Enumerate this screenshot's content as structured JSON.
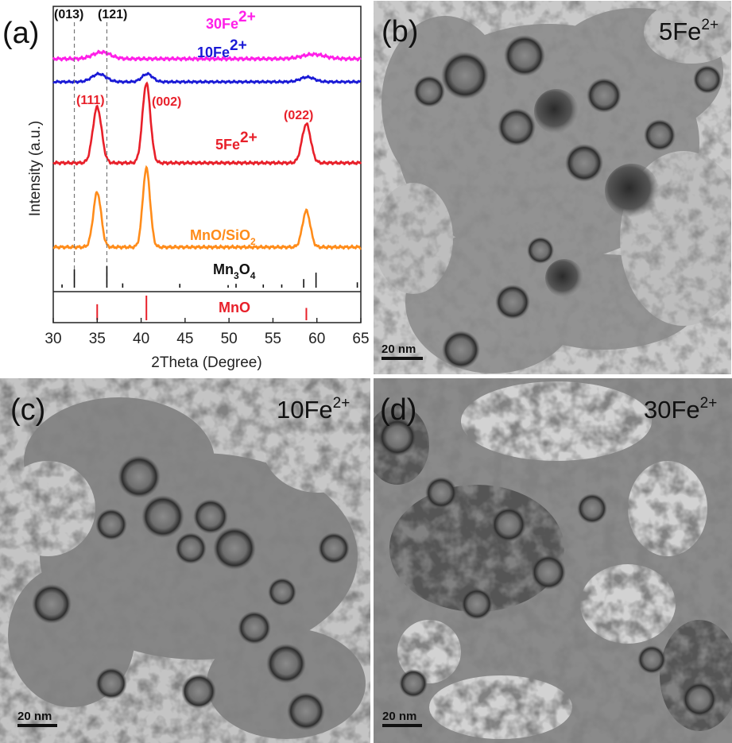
{
  "panels": {
    "a": {
      "label": "(a)"
    },
    "b": {
      "label": "(b)",
      "header": {
        "base": "5Fe",
        "sup": "2+"
      },
      "scale_bar": "20 nm"
    },
    "c": {
      "label": "(c)",
      "header": {
        "base": "10Fe",
        "sup": "2+"
      },
      "scale_bar": "20 nm"
    },
    "d": {
      "label": "(d)",
      "header": {
        "base": "30Fe",
        "sup": "2+"
      },
      "scale_bar": "20 nm"
    }
  },
  "chart_data": {
    "type": "line",
    "xlabel": "2Theta (Degree)",
    "ylabel": "Intensity (a.u.)",
    "xlim": [
      30,
      65
    ],
    "x_ticks": [
      30,
      35,
      40,
      45,
      50,
      55,
      60,
      65
    ],
    "colors": {
      "pink": "#ff1fe8",
      "blue": "#1a1ad6",
      "red": "#e8202a",
      "orange": "#ff8c1a",
      "black": "#111111",
      "grey": "#777777"
    },
    "series": [
      {
        "name": "30Fe2+",
        "label_base": "30Fe",
        "label_sup": "2+",
        "color": "#ff1fe8",
        "peaks": [
          {
            "x": 35.5,
            "h": 0.6,
            "w": 1.0
          },
          {
            "x": 59.6,
            "h": 0.4,
            "w": 1.3
          }
        ]
      },
      {
        "name": "10Fe2+",
        "label_base": "10Fe",
        "label_sup": "2+",
        "color": "#1a1ad6",
        "peaks": [
          {
            "x": 35.2,
            "h": 1.0,
            "w": 0.8
          },
          {
            "x": 40.7,
            "h": 1.0,
            "w": 0.6
          },
          {
            "x": 58.9,
            "h": 0.6,
            "w": 0.8
          }
        ]
      },
      {
        "name": "5Fe2+",
        "label_base": "5Fe",
        "label_sup": "2+",
        "color": "#e8202a",
        "peaks": [
          {
            "x": 35.0,
            "h": 5.6,
            "w": 0.5
          },
          {
            "x": 40.6,
            "h": 8.0,
            "w": 0.45
          },
          {
            "x": 58.8,
            "h": 3.9,
            "w": 0.5
          }
        ]
      },
      {
        "name": "MnO/SiO2",
        "label_base": "MnO/SiO",
        "label_sub": "2",
        "color": "#ff8c1a",
        "peaks": [
          {
            "x": 35.0,
            "h": 5.3,
            "w": 0.45
          },
          {
            "x": 40.6,
            "h": 7.6,
            "w": 0.42
          },
          {
            "x": 58.8,
            "h": 3.5,
            "w": 0.45
          }
        ]
      }
    ],
    "peak_labels": [
      {
        "text": "(111)",
        "x": 35.0,
        "color": "#e8202a"
      },
      {
        "text": "(002)",
        "x": 41.0,
        "color": "#e8202a"
      },
      {
        "text": "(022)",
        "x": 58.8,
        "color": "#e8202a"
      }
    ],
    "dashed_labels": [
      {
        "text": "(013)",
        "x": 32.4
      },
      {
        "text": "(121)",
        "x": 36.1
      }
    ],
    "reference": {
      "Mn3O4": {
        "label_base": "Mn",
        "label_sub1": "3",
        "label_mid": "O",
        "label_sub2": "4",
        "lines": [
          {
            "x": 31.0,
            "h": 0.15
          },
          {
            "x": 32.4,
            "h": 0.85
          },
          {
            "x": 36.1,
            "h": 1.0
          },
          {
            "x": 37.9,
            "h": 0.2
          },
          {
            "x": 44.4,
            "h": 0.18
          },
          {
            "x": 49.9,
            "h": 0.12
          },
          {
            "x": 50.8,
            "h": 0.18
          },
          {
            "x": 53.9,
            "h": 0.15
          },
          {
            "x": 56.0,
            "h": 0.15
          },
          {
            "x": 58.5,
            "h": 0.4
          },
          {
            "x": 59.9,
            "h": 0.7
          },
          {
            "x": 64.6,
            "h": 0.25
          }
        ]
      },
      "MnO": {
        "label": "MnO",
        "lines": [
          {
            "x": 35.0,
            "h": 0.65
          },
          {
            "x": 40.6,
            "h": 1.0
          },
          {
            "x": 58.8,
            "h": 0.5
          }
        ]
      }
    }
  }
}
